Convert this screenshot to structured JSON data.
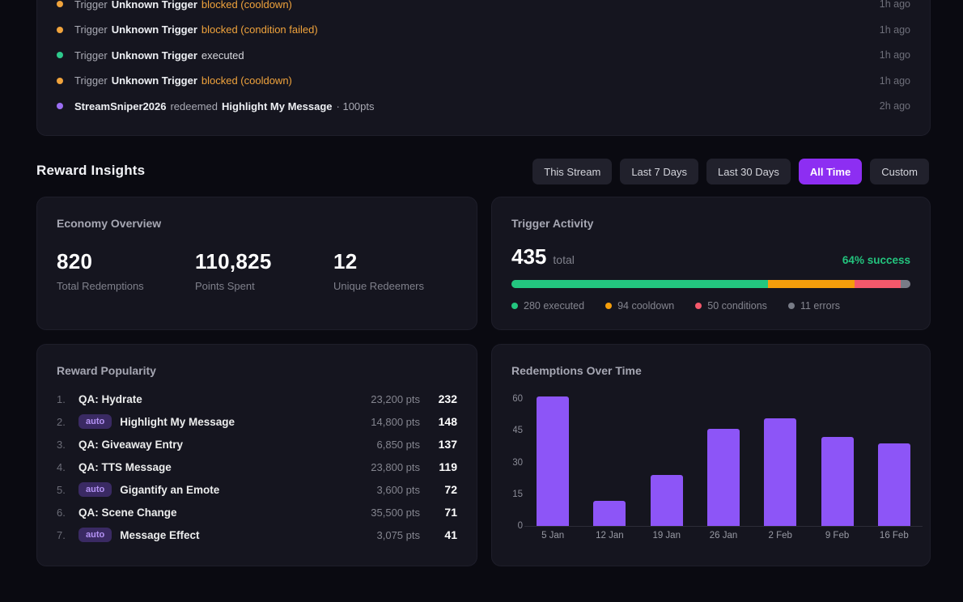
{
  "colors": {
    "page_bg": "#0a0a11",
    "card_bg": "#15151f",
    "accent_purple": "#8d2ef2",
    "bar_purple": "#8d55f7",
    "success_green": "#23c47e",
    "executed_green": "#23c67f",
    "cooldown_orange": "#f59e0b",
    "conditions_red": "#f4586b",
    "errors_gray": "#787c87",
    "blocked_text_orange": "#f0a33c",
    "badge_bg": "#3a2a63",
    "badge_text": "#b593f6"
  },
  "activity_log": {
    "entries": [
      {
        "type": "trigger",
        "prefix": "Trigger",
        "subject": "Unknown Trigger",
        "status": "blocked (cooldown)",
        "time": "1h ago"
      },
      {
        "type": "trigger",
        "prefix": "Trigger",
        "subject": "Unknown Trigger",
        "status": "blocked (condition failed)",
        "time": "1h ago"
      },
      {
        "type": "trigger",
        "prefix": "Trigger",
        "subject": "Unknown Trigger",
        "status": "executed",
        "time": "1h ago"
      },
      {
        "type": "trigger",
        "prefix": "Trigger",
        "subject": "Unknown Trigger",
        "status": "blocked (cooldown)",
        "time": "1h ago"
      },
      {
        "type": "redemption",
        "user": "StreamSniper2026",
        "action": "redeemed",
        "reward": "Highlight My Message",
        "points": "· 100pts",
        "time": "2h ago"
      }
    ]
  },
  "insights": {
    "title": "Reward Insights",
    "filters": [
      {
        "label": "This Stream",
        "active": false
      },
      {
        "label": "Last 7 Days",
        "active": false
      },
      {
        "label": "Last 30 Days",
        "active": false
      },
      {
        "label": "All Time",
        "active": true
      },
      {
        "label": "Custom",
        "active": false
      }
    ]
  },
  "economy": {
    "title": "Economy Overview",
    "stats": [
      {
        "value": "820",
        "label": "Total Redemptions"
      },
      {
        "value": "110,825",
        "label": "Points Spent"
      },
      {
        "value": "12",
        "label": "Unique Redeemers"
      }
    ]
  },
  "trigger_activity": {
    "title": "Trigger Activity",
    "total": "435",
    "total_label": "total",
    "success_label": "64% success",
    "segments": [
      {
        "label": "executed",
        "value": 280,
        "color": "#23c67f"
      },
      {
        "label": "cooldown",
        "value": 94,
        "color": "#f59e0b"
      },
      {
        "label": "conditions",
        "value": 50,
        "color": "#f4586b"
      },
      {
        "label": "errors",
        "value": 11,
        "color": "#787c87"
      }
    ]
  },
  "reward_popularity": {
    "title": "Reward Popularity",
    "auto_badge_label": "auto",
    "items": [
      {
        "rank": "1.",
        "auto": false,
        "name": "QA: Hydrate",
        "points": "23,200 pts",
        "count": "232"
      },
      {
        "rank": "2.",
        "auto": true,
        "name": "Highlight My Message",
        "points": "14,800 pts",
        "count": "148"
      },
      {
        "rank": "3.",
        "auto": false,
        "name": "QA: Giveaway Entry",
        "points": "6,850 pts",
        "count": "137"
      },
      {
        "rank": "4.",
        "auto": false,
        "name": "QA: TTS Message",
        "points": "23,800 pts",
        "count": "119"
      },
      {
        "rank": "5.",
        "auto": true,
        "name": "Gigantify an Emote",
        "points": "3,600 pts",
        "count": "72"
      },
      {
        "rank": "6.",
        "auto": false,
        "name": "QA: Scene Change",
        "points": "35,500 pts",
        "count": "71"
      },
      {
        "rank": "7.",
        "auto": true,
        "name": "Message Effect",
        "points": "3,075 pts",
        "count": "41"
      }
    ]
  },
  "chart_data": {
    "type": "bar",
    "title": "Redemptions Over Time",
    "categories": [
      "5 Jan",
      "12 Jan",
      "19 Jan",
      "26 Jan",
      "2 Feb",
      "9 Feb",
      "16 Feb"
    ],
    "values": [
      61,
      12,
      24,
      46,
      51,
      42,
      39
    ],
    "yticks": [
      0,
      15,
      30,
      45,
      60
    ],
    "ylim": [
      0,
      61
    ],
    "xlabel": "",
    "ylabel": "",
    "grid": false,
    "legend_position": "none",
    "bar_color": "#8d55f7"
  }
}
